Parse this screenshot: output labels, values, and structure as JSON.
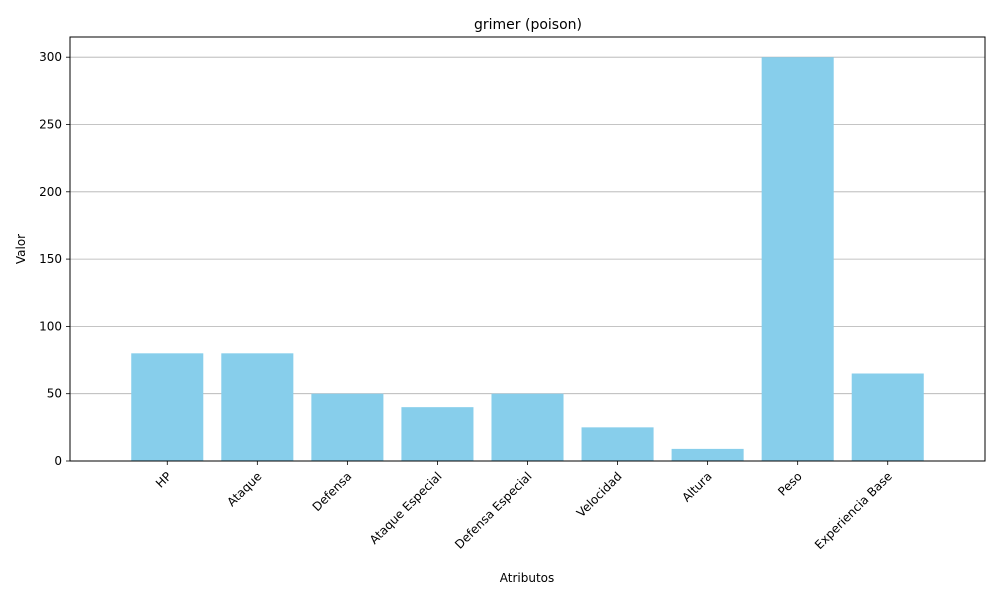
{
  "chart_data": {
    "type": "bar",
    "title": "grimer (poison)",
    "xlabel": "Atributos",
    "ylabel": "Valor",
    "categories": [
      "HP",
      "Ataque",
      "Defensa",
      "Ataque Especial",
      "Defensa Especial",
      "Velocidad",
      "Altura",
      "Peso",
      "Experiencia Base"
    ],
    "values": [
      80,
      80,
      50,
      40,
      50,
      25,
      9,
      300,
      65
    ],
    "ylim": [
      0,
      315
    ],
    "yticks": [
      0,
      50,
      100,
      150,
      200,
      250,
      300
    ],
    "grid": "y",
    "bar_color": "#87CEEB"
  }
}
